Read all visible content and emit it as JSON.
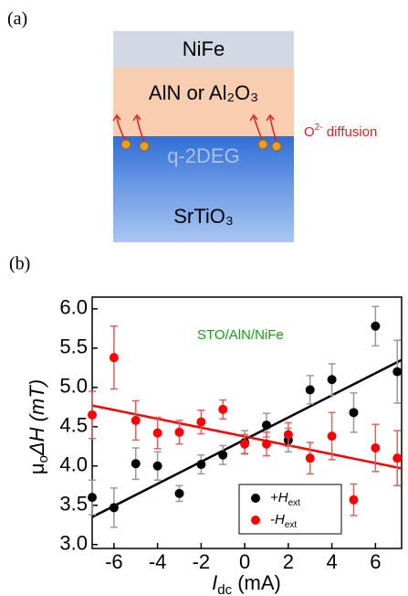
{
  "panel_a": {
    "label": "(a)",
    "layers": {
      "top": "NiFe",
      "middle": "AlN or Al₂O₃",
      "interface": "q-2DEG",
      "bottom": "SrTiO₃"
    },
    "annotation": {
      "ion": "O",
      "charge": "2-",
      "text": " diffusion"
    }
  },
  "panel_b": {
    "label": "(b)"
  },
  "chart_data": {
    "type": "scatter",
    "annotation": "STO/AlN/NiFe",
    "x_label": {
      "main": "I",
      "sub": "dc",
      "rest": " (mA)"
    },
    "y_label": {
      "main": "μ",
      "sub": "o",
      "rest": "ΔH (mT)"
    },
    "x": [
      -7,
      -6,
      -5,
      -4,
      -3,
      -2,
      -1,
      0,
      1,
      2,
      3,
      4,
      5,
      6,
      7
    ],
    "series": [
      {
        "name": "+H",
        "name_sub": "ext",
        "color": "#000000",
        "error_color": "#999999",
        "values": [
          3.6,
          3.47,
          4.03,
          4.0,
          3.65,
          4.02,
          4.14,
          4.3,
          4.52,
          4.33,
          4.97,
          5.1,
          4.68,
          5.78,
          5.2
        ],
        "errors": [
          0.22,
          0.25,
          0.2,
          0.18,
          0.1,
          0.12,
          0.12,
          0.15,
          0.15,
          0.15,
          0.18,
          0.2,
          0.25,
          0.25,
          0.4
        ]
      },
      {
        "name": "-H",
        "name_sub": "ext",
        "color": "#ff0000",
        "error_color": "#e06060",
        "values": [
          4.65,
          5.38,
          4.58,
          4.42,
          4.43,
          4.56,
          4.72,
          4.28,
          4.28,
          4.4,
          4.1,
          4.38,
          3.57,
          4.23,
          4.1
        ],
        "errors": [
          0.3,
          0.4,
          0.25,
          0.2,
          0.15,
          0.15,
          0.12,
          0.12,
          0.15,
          0.15,
          0.2,
          0.3,
          0.2,
          0.3,
          0.35
        ]
      }
    ],
    "fits": [
      {
        "color": "#000000",
        "x": [
          -7,
          7.2
        ],
        "values": [
          3.35,
          5.35
        ]
      },
      {
        "color": "#ff0000",
        "x": [
          -7,
          7.2
        ],
        "values": [
          4.77,
          3.97
        ]
      }
    ],
    "xlim": [
      -7,
      7.2
    ],
    "ylim": [
      2.95,
      6.15
    ],
    "xticks": [
      -6,
      -4,
      -2,
      0,
      2,
      4,
      6
    ],
    "yticks": [
      {
        "value": 3,
        "label": "3.0"
      },
      {
        "value": 3.5,
        "label": "3.5"
      },
      {
        "value": 4,
        "label": "4.0"
      },
      {
        "value": 4.5,
        "label": "4.5"
      },
      {
        "value": 5,
        "label": "5.0"
      },
      {
        "value": 5.5,
        "label": "5.5"
      },
      {
        "value": 6,
        "label": "6.0"
      }
    ]
  }
}
